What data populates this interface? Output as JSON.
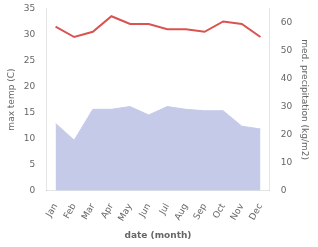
{
  "chart_data": {
    "type": "line",
    "xlabel": "date (month)",
    "ylabel": "max temp (C)",
    "y2label": "med. precipitation (kg/m2)",
    "categories": [
      "Jan",
      "Feb",
      "Mar",
      "Apr",
      "May",
      "Jun",
      "Jul",
      "Aug",
      "Sep",
      "Oct",
      "Nov",
      "Dec"
    ],
    "series": [
      {
        "type": "area",
        "color": "#c5cae9",
        "axis": "y2",
        "values": [
          24,
          18,
          29,
          29,
          30,
          27,
          30,
          29,
          28.5,
          28.5,
          23,
          22
        ]
      },
      {
        "type": "line",
        "color": "#d9534f",
        "values": [
          31.5,
          29.5,
          30.5,
          33.5,
          32.0,
          32.0,
          31.0,
          31.0,
          30.5,
          32.5,
          32.0,
          29.5
        ]
      }
    ],
    "ylim": [
      0,
      35
    ],
    "yticks": [
      0,
      5,
      10,
      15,
      20,
      25,
      30,
      35
    ],
    "y2lim": [
      0,
      65
    ],
    "y2ticks": [
      0,
      10,
      20,
      30,
      40,
      50,
      60
    ],
    "grid": false
  }
}
